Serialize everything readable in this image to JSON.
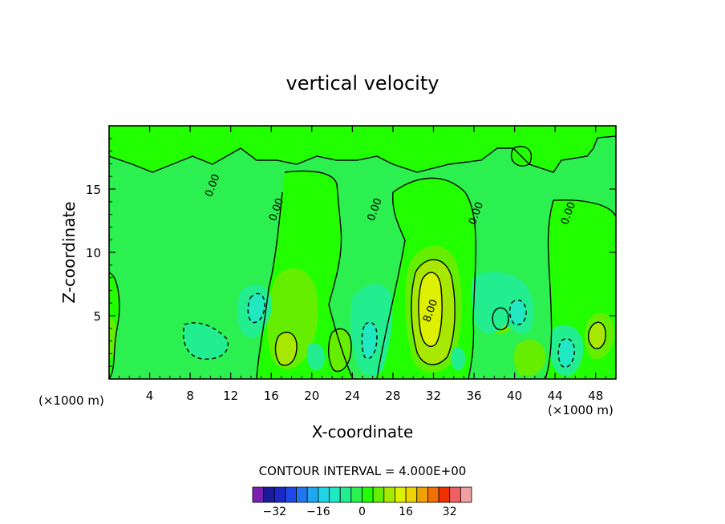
{
  "chart_data": {
    "type": "heatmap",
    "title": "vertical velocity",
    "xlabel": "X-coordinate",
    "ylabel": "Z-coordinate",
    "x_unit_left": "(×1000 m)",
    "x_unit_right": "(×1000 m)",
    "xlim": [
      0,
      50
    ],
    "ylim": [
      0,
      20
    ],
    "x_ticks": [
      4,
      8,
      12,
      16,
      20,
      24,
      28,
      32,
      36,
      40,
      44,
      48
    ],
    "y_ticks": [
      5,
      10,
      15
    ],
    "contour_interval_text": "CONTOUR INTERVAL = 4.000E+00",
    "colorbar_ticks": [
      -32,
      -16,
      0,
      16,
      32
    ],
    "colorbar_levels": [
      -36,
      -32,
      -28,
      -24,
      -20,
      -16,
      -12,
      -8,
      -4,
      0,
      4,
      8,
      12,
      16,
      20,
      24,
      28,
      32,
      36
    ],
    "colorbar_colors": [
      "#7a1fb0",
      "#1a1a9c",
      "#1a28c8",
      "#1e46e8",
      "#1e78f0",
      "#1ea8f0",
      "#1ed4e6",
      "#20e8c0",
      "#22ee90",
      "#2cf050",
      "#22ff00",
      "#66ee00",
      "#a8e800",
      "#dcf000",
      "#f0d400",
      "#f0a000",
      "#f07000",
      "#f03000",
      "#f06060",
      "#f0a0a0"
    ],
    "contour_labels": [
      {
        "text": "0.00",
        "x": 10.5,
        "y": 15.2
      },
      {
        "text": "0.00",
        "x": 16.8,
        "y": 13.3
      },
      {
        "text": "0.00",
        "x": 26.5,
        "y": 13.3
      },
      {
        "text": "0.00",
        "x": 36.5,
        "y": 13.0
      },
      {
        "text": "0.00",
        "x": 45.6,
        "y": 13.0
      },
      {
        "text": "8.00",
        "x": 32.0,
        "y": 5.3
      }
    ],
    "features": [
      {
        "value": 20,
        "x": 31.7,
        "y": 6.0,
        "note": "updraft maximum"
      },
      {
        "value": 12,
        "x": 17.3,
        "y": 2.4
      },
      {
        "value": 12,
        "x": 23.4,
        "y": 2.2
      },
      {
        "value": 12,
        "x": 38.6,
        "y": 4.6
      },
      {
        "value": 12,
        "x": 48.4,
        "y": 3.8
      },
      {
        "value": -8,
        "x": 14.6,
        "y": 5.4
      },
      {
        "value": -8,
        "x": 25.8,
        "y": 3.0
      },
      {
        "value": -8,
        "x": 45.1,
        "y": 2.0
      }
    ]
  }
}
